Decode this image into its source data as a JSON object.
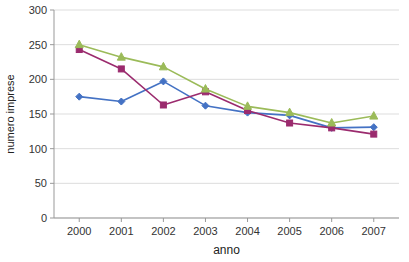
{
  "chart_data": {
    "type": "line",
    "x": [
      2000,
      2001,
      2002,
      2003,
      2004,
      2005,
      2006,
      2007
    ],
    "series": [
      {
        "color": "#4472C4",
        "marker": "diamond",
        "values": [
          175,
          168,
          197,
          162,
          152,
          148,
          130,
          131
        ]
      },
      {
        "color": "#9B2B6E",
        "marker": "square",
        "values": [
          243,
          215,
          163,
          182,
          155,
          137,
          130,
          121
        ]
      },
      {
        "color": "#9BBB59",
        "marker": "triangle",
        "values": [
          250,
          232,
          218,
          186,
          161,
          152,
          137,
          147
        ]
      }
    ],
    "xlabel": "anno",
    "ylabel": "numero imprese",
    "xlim": [
      1999.4,
      2007.6
    ],
    "xticks": [
      2000,
      2001,
      2002,
      2003,
      2004,
      2005,
      2006,
      2007
    ],
    "ylim": [
      0,
      300
    ],
    "yticks": [
      0,
      50,
      100,
      150,
      200,
      250,
      300
    ],
    "grid": true
  }
}
